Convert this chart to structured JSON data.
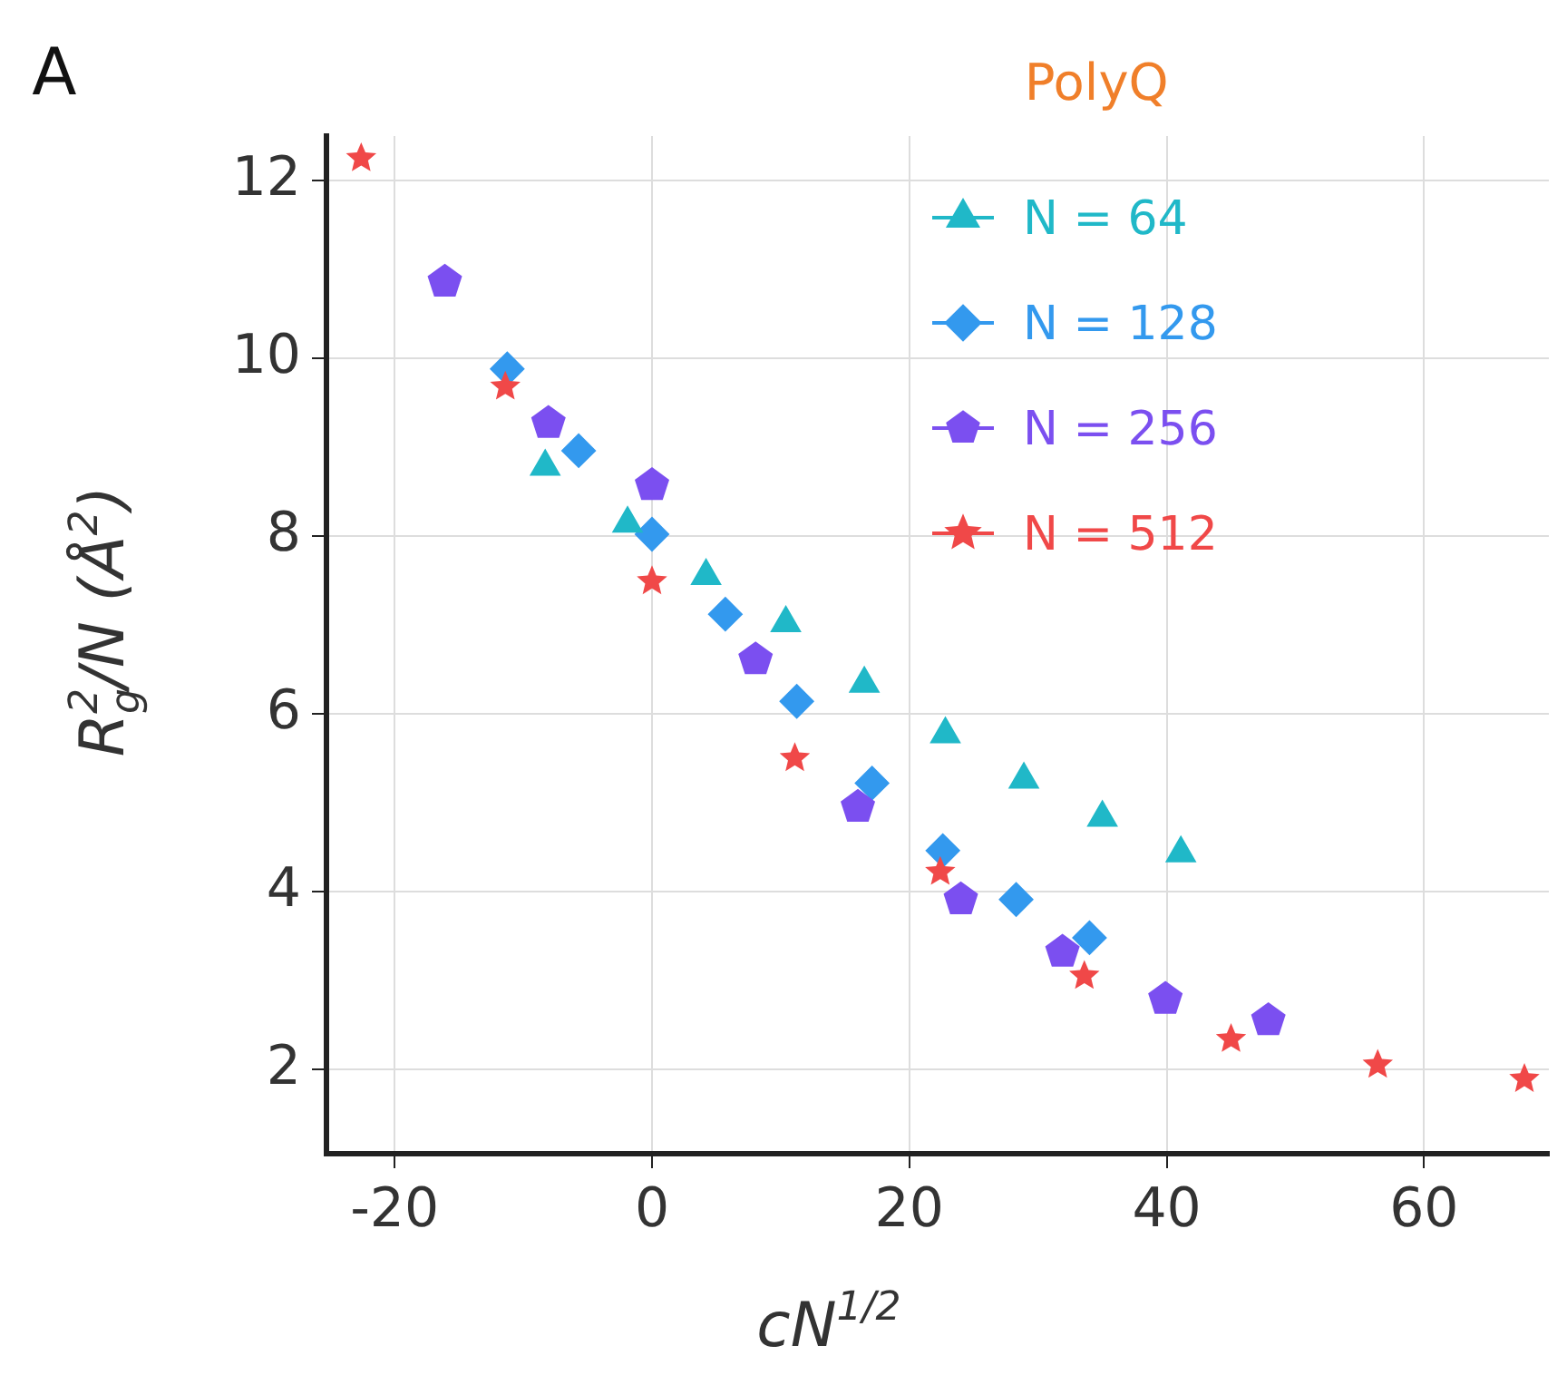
{
  "chart_data": {
    "type": "scatter",
    "title": "PolyQ",
    "xlabel": "cN$^{1/2}$",
    "ylabel": "R$_{g}$$^{2}$/N (Å$^{2}$)",
    "annotations": [
      "A"
    ],
    "xlim": [
      -25.3,
      69.7
    ],
    "ylim": [
      1.05,
      12.5
    ],
    "xticks": [
      -20,
      0,
      20,
      40,
      60
    ],
    "yticks": [
      2,
      4,
      6,
      8,
      10,
      12
    ],
    "grid": true,
    "legend": "top right",
    "series": [
      {
        "name": "N = 64",
        "color": "#20b8c8",
        "marker": "triangle",
        "x": [
          -8.3,
          -1.9,
          4.2,
          10.4,
          16.5,
          22.8,
          28.9,
          35,
          41.1
        ],
        "values": [
          8.78,
          8.14,
          7.55,
          7.02,
          6.34,
          5.77,
          5.26,
          4.83,
          4.43
        ]
      },
      {
        "name": "N = 128",
        "color": "#3399ee",
        "marker": "diamond",
        "x": [
          -11.25,
          -5.7,
          0,
          5.7,
          11.25,
          17.1,
          22.6,
          28.3,
          34
        ],
        "values": [
          9.88,
          8.96,
          8.02,
          7.12,
          6.14,
          5.22,
          4.46,
          3.91,
          3.48
        ]
      },
      {
        "name": "N = 256",
        "color": "#7b4ff0",
        "x": [
          -16.1,
          -8.05,
          0,
          8.05,
          16,
          24,
          31.9,
          39.9,
          47.9
        ],
        "values": [
          10.86,
          9.27,
          8.57,
          6.61,
          4.95,
          3.91,
          3.32,
          2.79,
          2.55
        ]
      },
      {
        "name": "N = 512",
        "color": "#f04848",
        "marker": "star",
        "x": [
          -22.6,
          -11.4,
          0,
          11.1,
          22.4,
          33.6,
          45,
          56.4,
          67.8
        ],
        "values": [
          12.25,
          9.68,
          7.49,
          5.5,
          4.22,
          3.05,
          2.34,
          2.05,
          1.89
        ]
      }
    ]
  }
}
